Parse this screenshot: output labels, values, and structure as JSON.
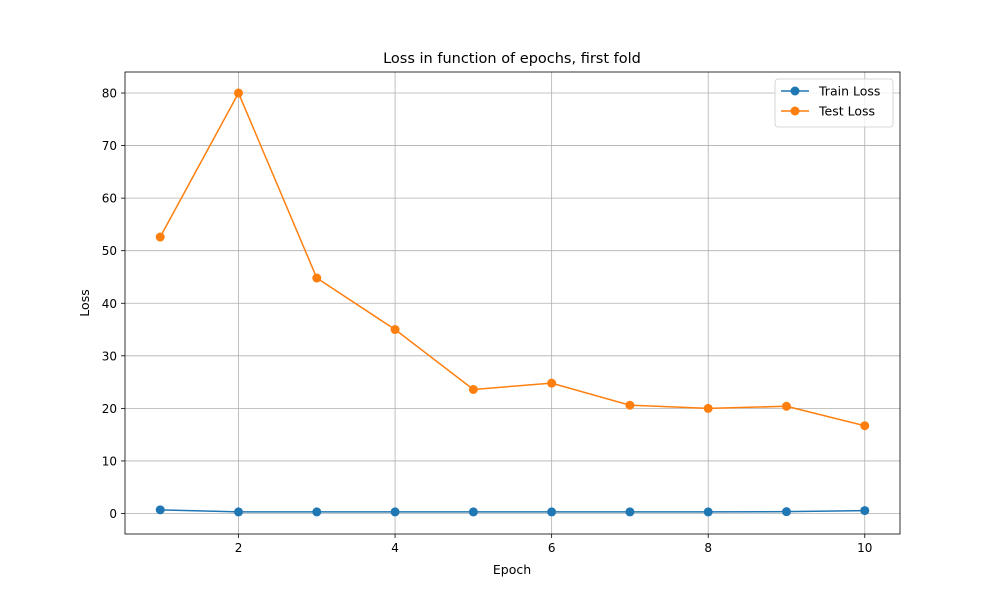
{
  "chart_data": {
    "type": "line",
    "title": "Loss in function of epochs, first fold",
    "xlabel": "Epoch",
    "ylabel": "Loss",
    "x": [
      1,
      2,
      3,
      4,
      5,
      6,
      7,
      8,
      9,
      10
    ],
    "xlim": [
      0.55,
      10.45
    ],
    "ylim": [
      -3.9,
      84
    ],
    "xticks": [
      2,
      4,
      6,
      8,
      10
    ],
    "yticks": [
      0,
      10,
      20,
      30,
      40,
      50,
      60,
      70,
      80
    ],
    "grid": true,
    "legend_position": "top-right",
    "series": [
      {
        "name": "Train Loss",
        "color": "#1f77b4",
        "marker": "circle",
        "values": [
          0.7,
          0.3,
          0.3,
          0.3,
          0.3,
          0.3,
          0.3,
          0.3,
          0.35,
          0.55
        ]
      },
      {
        "name": "Test Loss",
        "color": "#ff7f0e",
        "marker": "circle",
        "values": [
          52.6,
          80.0,
          44.8,
          35.0,
          23.6,
          24.8,
          20.6,
          20.0,
          20.4,
          16.7
        ]
      }
    ]
  }
}
